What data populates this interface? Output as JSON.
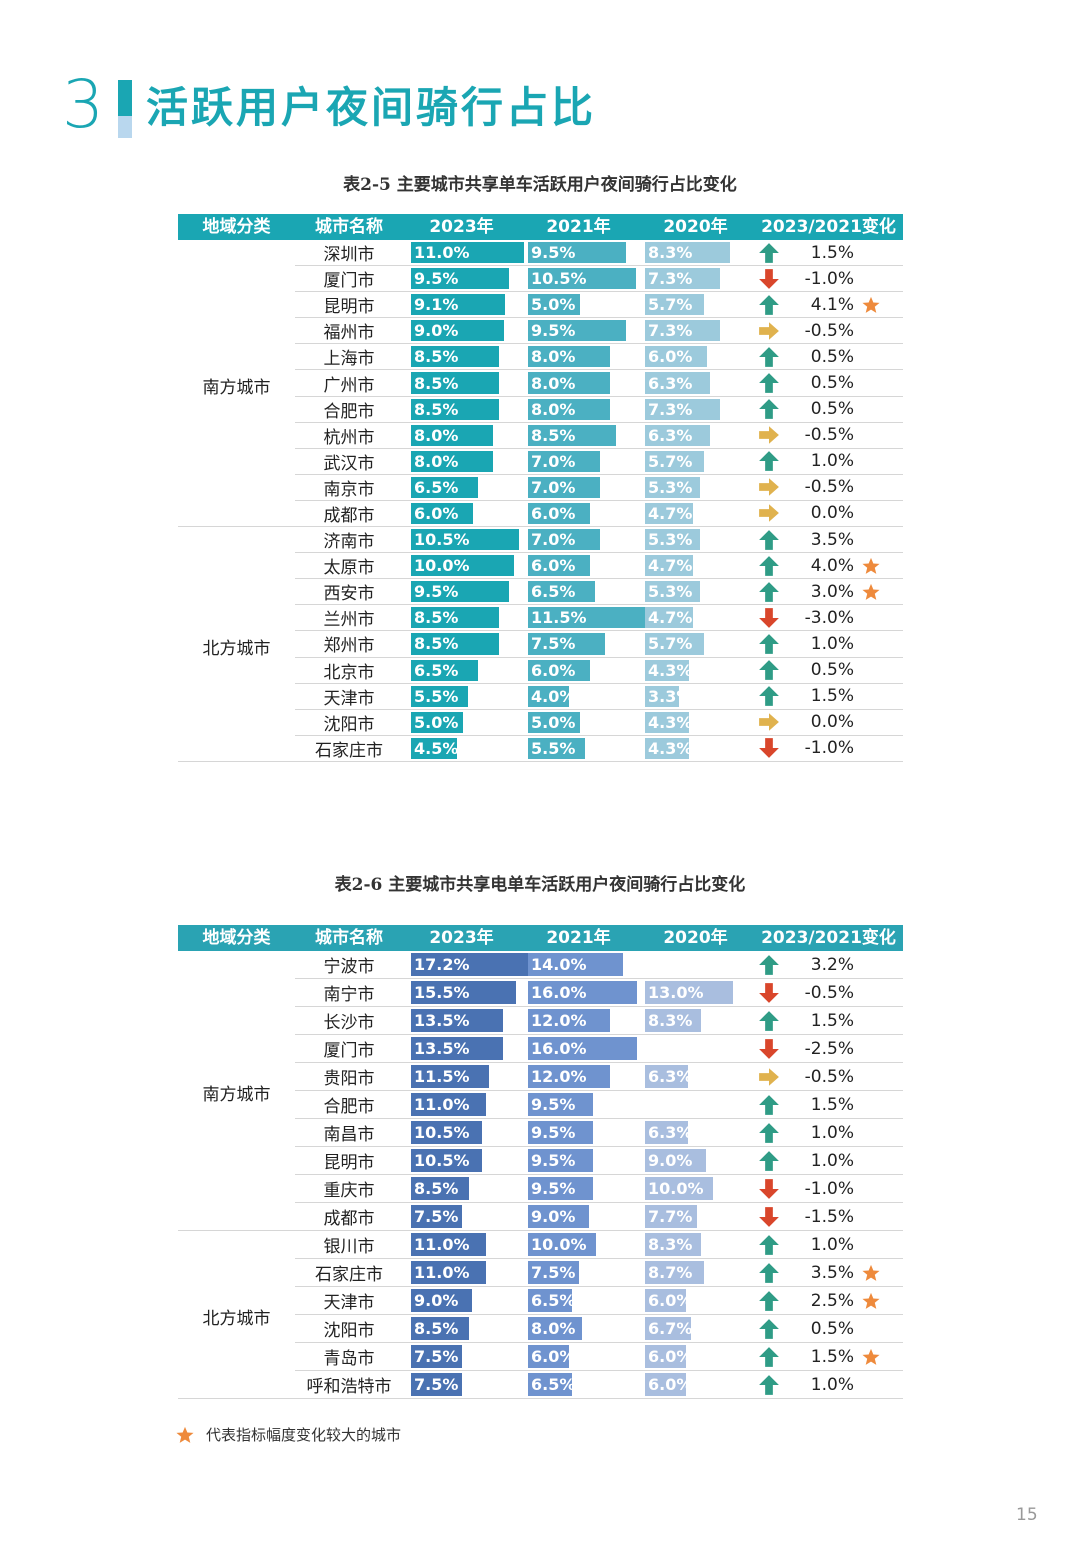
{
  "section": {
    "number": "3",
    "title": "活跃用户夜间骑行占比"
  },
  "tables": [
    {
      "caption": "表2-5 主要城市共享单车活跃用户夜间骑行占比变化",
      "headers": [
        "地域分类",
        "城市名称",
        "2023年",
        "2021年",
        "2020年",
        "2023/2021变化"
      ],
      "colors": {
        "header": "#1aa6b3",
        "y2023": "#1aa6b3",
        "y2021": "#4bb0c2",
        "y2020": "#9ccadc"
      },
      "groups": [
        {
          "region": "南方城市",
          "rows": [
            {
              "city": "深圳市",
              "y2023": 11.0,
              "y2021": 9.5,
              "y2020": 8.3,
              "l2023": "11.0%",
              "l2021": "9.5%",
              "l2020": "8.3%",
              "trend": "up",
              "change": "1.5%",
              "star": false
            },
            {
              "city": "厦门市",
              "y2023": 9.5,
              "y2021": 10.5,
              "y2020": 7.3,
              "l2023": "9.5%",
              "l2021": "10.5%",
              "l2020": "7.3%",
              "trend": "down",
              "change": "-1.0%",
              "star": false
            },
            {
              "city": "昆明市",
              "y2023": 9.1,
              "y2021": 5.0,
              "y2020": 5.7,
              "l2023": "9.1%",
              "l2021": "5.0%",
              "l2020": "5.7%",
              "trend": "up",
              "change": "4.1%",
              "star": true
            },
            {
              "city": "福州市",
              "y2023": 9.0,
              "y2021": 9.5,
              "y2020": 7.3,
              "l2023": "9.0%",
              "l2021": "9.5%",
              "l2020": "7.3%",
              "trend": "flat",
              "change": "-0.5%",
              "star": false
            },
            {
              "city": "上海市",
              "y2023": 8.5,
              "y2021": 8.0,
              "y2020": 6.0,
              "l2023": "8.5%",
              "l2021": "8.0%",
              "l2020": "6.0%",
              "trend": "up",
              "change": "0.5%",
              "star": false
            },
            {
              "city": "广州市",
              "y2023": 8.5,
              "y2021": 8.0,
              "y2020": 6.3,
              "l2023": "8.5%",
              "l2021": "8.0%",
              "l2020": "6.3%",
              "trend": "up",
              "change": "0.5%",
              "star": false
            },
            {
              "city": "合肥市",
              "y2023": 8.5,
              "y2021": 8.0,
              "y2020": 7.3,
              "l2023": "8.5%",
              "l2021": "8.0%",
              "l2020": "7.3%",
              "trend": "up",
              "change": "0.5%",
              "star": false
            },
            {
              "city": "杭州市",
              "y2023": 8.0,
              "y2021": 8.5,
              "y2020": 6.3,
              "l2023": "8.0%",
              "l2021": "8.5%",
              "l2020": "6.3%",
              "trend": "flat",
              "change": "-0.5%",
              "star": false
            },
            {
              "city": "武汉市",
              "y2023": 8.0,
              "y2021": 7.0,
              "y2020": 5.7,
              "l2023": "8.0%",
              "l2021": "7.0%",
              "l2020": "5.7%",
              "trend": "up",
              "change": "1.0%",
              "star": false
            },
            {
              "city": "南京市",
              "y2023": 6.5,
              "y2021": 7.0,
              "y2020": 5.3,
              "l2023": "6.5%",
              "l2021": "7.0%",
              "l2020": "5.3%",
              "trend": "flat",
              "change": "-0.5%",
              "star": false
            },
            {
              "city": "成都市",
              "y2023": 6.0,
              "y2021": 6.0,
              "y2020": 4.7,
              "l2023": "6.0%",
              "l2021": "6.0%",
              "l2020": "4.7%",
              "trend": "flat",
              "change": "0.0%",
              "star": false
            }
          ]
        },
        {
          "region": "北方城市",
          "rows": [
            {
              "city": "济南市",
              "y2023": 10.5,
              "y2021": 7.0,
              "y2020": 5.3,
              "l2023": "10.5%",
              "l2021": "7.0%",
              "l2020": "5.3%",
              "trend": "up",
              "change": "3.5%",
              "star": false
            },
            {
              "city": "太原市",
              "y2023": 10.0,
              "y2021": 6.0,
              "y2020": 4.7,
              "l2023": "10.0%",
              "l2021": "6.0%",
              "l2020": "4.7%",
              "trend": "up",
              "change": "4.0%",
              "star": true
            },
            {
              "city": "西安市",
              "y2023": 9.5,
              "y2021": 6.5,
              "y2020": 5.3,
              "l2023": "9.5%",
              "l2021": "6.5%",
              "l2020": "5.3%",
              "trend": "up",
              "change": "3.0%",
              "star": true
            },
            {
              "city": "兰州市",
              "y2023": 8.5,
              "y2021": 11.5,
              "y2020": 4.7,
              "l2023": "8.5%",
              "l2021": "11.5%",
              "l2020": "4.7%",
              "trend": "down",
              "change": "-3.0%",
              "star": false
            },
            {
              "city": "郑州市",
              "y2023": 8.5,
              "y2021": 7.5,
              "y2020": 5.7,
              "l2023": "8.5%",
              "l2021": "7.5%",
              "l2020": "5.7%",
              "trend": "up",
              "change": "1.0%",
              "star": false
            },
            {
              "city": "北京市",
              "y2023": 6.5,
              "y2021": 6.0,
              "y2020": 4.3,
              "l2023": "6.5%",
              "l2021": "6.0%",
              "l2020": "4.3%",
              "trend": "up",
              "change": "0.5%",
              "star": false
            },
            {
              "city": "天津市",
              "y2023": 5.5,
              "y2021": 4.0,
              "y2020": 3.3,
              "l2023": "5.5%",
              "l2021": "4.0%",
              "l2020": "3.3%",
              "trend": "up",
              "change": "1.5%",
              "star": false
            },
            {
              "city": "沈阳市",
              "y2023": 5.0,
              "y2021": 5.0,
              "y2020": 4.3,
              "l2023": "5.0%",
              "l2021": "5.0%",
              "l2020": "4.3%",
              "trend": "flat",
              "change": "0.0%",
              "star": false
            },
            {
              "city": "石家庄市",
              "y2023": 4.5,
              "y2021": 5.5,
              "y2020": 4.3,
              "l2023": "4.5%",
              "l2021": "5.5%",
              "l2020": "4.3%",
              "trend": "down",
              "change": "-1.0%",
              "star": false
            }
          ]
        }
      ]
    },
    {
      "caption": "表2-6 主要城市共享电单车活跃用户夜间骑行占比变化",
      "headers": [
        "地域分类",
        "城市名称",
        "2023年",
        "2021年",
        "2020年",
        "2023/2021变化"
      ],
      "colors": {
        "header": "#2aa3b3",
        "y2023": "#4a72b2",
        "y2021": "#6f93cf",
        "y2020": "#a9bedf"
      },
      "groups": [
        {
          "region": "南方城市",
          "rows": [
            {
              "city": "宁波市",
              "y2023": 17.2,
              "y2021": 14.0,
              "y2020": null,
              "l2023": "17.2%",
              "l2021": "14.0%",
              "l2020": null,
              "trend": "up",
              "change": "3.2%",
              "star": false
            },
            {
              "city": "南宁市",
              "y2023": 15.5,
              "y2021": 16.0,
              "y2020": 13.0,
              "l2023": "15.5%",
              "l2021": "16.0%",
              "l2020": "13.0%",
              "trend": "down",
              "change": "-0.5%",
              "star": false
            },
            {
              "city": "长沙市",
              "y2023": 13.5,
              "y2021": 12.0,
              "y2020": 8.3,
              "l2023": "13.5%",
              "l2021": "12.0%",
              "l2020": "8.3%",
              "trend": "up",
              "change": "1.5%",
              "star": false
            },
            {
              "city": "厦门市",
              "y2023": 13.5,
              "y2021": 16.0,
              "y2020": null,
              "l2023": "13.5%",
              "l2021": "16.0%",
              "l2020": null,
              "trend": "down",
              "change": "-2.5%",
              "star": false
            },
            {
              "city": "贵阳市",
              "y2023": 11.5,
              "y2021": 12.0,
              "y2020": 6.3,
              "l2023": "11.5%",
              "l2021": "12.0%",
              "l2020": "6.3%",
              "trend": "flat",
              "change": "-0.5%",
              "star": false
            },
            {
              "city": "合肥市",
              "y2023": 11.0,
              "y2021": 9.5,
              "y2020": null,
              "l2023": "11.0%",
              "l2021": "9.5%",
              "l2020": null,
              "trend": "up",
              "change": "1.5%",
              "star": false
            },
            {
              "city": "南昌市",
              "y2023": 10.5,
              "y2021": 9.5,
              "y2020": 6.3,
              "l2023": "10.5%",
              "l2021": "9.5%",
              "l2020": "6.3%",
              "trend": "up",
              "change": "1.0%",
              "star": false
            },
            {
              "city": "昆明市",
              "y2023": 10.5,
              "y2021": 9.5,
              "y2020": 9.0,
              "l2023": "10.5%",
              "l2021": "9.5%",
              "l2020": "9.0%",
              "trend": "up",
              "change": "1.0%",
              "star": false
            },
            {
              "city": "重庆市",
              "y2023": 8.5,
              "y2021": 9.5,
              "y2020": 10.0,
              "l2023": "8.5%",
              "l2021": "9.5%",
              "l2020": "10.0%",
              "trend": "down",
              "change": "-1.0%",
              "star": false
            },
            {
              "city": "成都市",
              "y2023": 7.5,
              "y2021": 9.0,
              "y2020": 7.7,
              "l2023": "7.5%",
              "l2021": "9.0%",
              "l2020": "7.7%",
              "trend": "down",
              "change": "-1.5%",
              "star": false
            }
          ]
        },
        {
          "region": "北方城市",
          "rows": [
            {
              "city": "银川市",
              "y2023": 11.0,
              "y2021": 10.0,
              "y2020": 8.3,
              "l2023": "11.0%",
              "l2021": "10.0%",
              "l2020": "8.3%",
              "trend": "up",
              "change": "1.0%",
              "star": false
            },
            {
              "city": "石家庄市",
              "y2023": 11.0,
              "y2021": 7.5,
              "y2020": 8.7,
              "l2023": "11.0%",
              "l2021": "7.5%",
              "l2020": "8.7%",
              "trend": "up",
              "change": "3.5%",
              "star": true
            },
            {
              "city": "天津市",
              "y2023": 9.0,
              "y2021": 6.5,
              "y2020": 6.0,
              "l2023": "9.0%",
              "l2021": "6.5%",
              "l2020": "6.0%",
              "trend": "up",
              "change": "2.5%",
              "star": true
            },
            {
              "city": "沈阳市",
              "y2023": 8.5,
              "y2021": 8.0,
              "y2020": 6.7,
              "l2023": "8.5%",
              "l2021": "8.0%",
              "l2020": "6.7%",
              "trend": "up",
              "change": "0.5%",
              "star": false
            },
            {
              "city": "青岛市",
              "y2023": 7.5,
              "y2021": 6.0,
              "y2020": 6.0,
              "l2023": "7.5%",
              "l2021": "6.0%",
              "l2020": "6.0%",
              "trend": "up",
              "change": "1.5%",
              "star": true
            },
            {
              "city": "呼和浩特市",
              "y2023": 7.5,
              "y2021": 6.5,
              "y2020": 6.0,
              "l2023": "7.5%",
              "l2021": "6.5%",
              "l2020": "6.0%",
              "trend": "up",
              "change": "1.0%",
              "star": false
            }
          ]
        }
      ]
    }
  ],
  "legend": {
    "text": "代表指标幅度变化较大的城市"
  },
  "page_number": "15",
  "trend_colors": {
    "up": "#2f9c86",
    "down": "#d9462b",
    "flat": "#e0b24e",
    "star": "#ee8a3c"
  }
}
